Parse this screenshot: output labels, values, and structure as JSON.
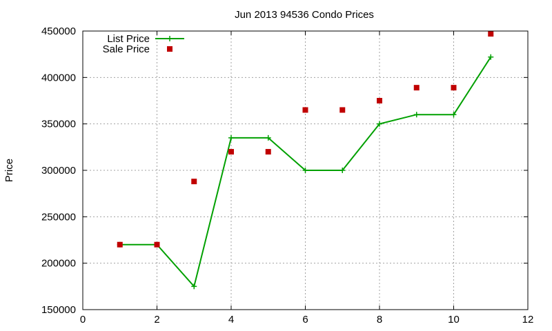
{
  "chart_data": {
    "type": "line",
    "title": "Jun 2013 94536 Condo Prices",
    "xlabel": "",
    "ylabel": "Price",
    "xlim": [
      0,
      12
    ],
    "ylim": [
      150000,
      450000
    ],
    "xticks": [
      0,
      2,
      4,
      6,
      8,
      10,
      12
    ],
    "yticks": [
      150000,
      200000,
      250000,
      300000,
      350000,
      400000,
      450000
    ],
    "grid": true,
    "legend_position": "top-left",
    "series": [
      {
        "name": "List Price",
        "style": "line-points",
        "marker": "plus",
        "color": "#00a000",
        "x": [
          1,
          2,
          3,
          4,
          5,
          6,
          7,
          8,
          9,
          10,
          11
        ],
        "y": [
          220000,
          220000,
          175000,
          335000,
          335000,
          300000,
          300000,
          350000,
          360000,
          360000,
          422000
        ]
      },
      {
        "name": "Sale Price",
        "style": "points",
        "marker": "square",
        "color": "#c00000",
        "x": [
          1,
          2,
          3,
          4,
          5,
          6,
          7,
          8,
          9,
          10,
          11
        ],
        "y": [
          220000,
          220000,
          288000,
          320000,
          320000,
          365000,
          365000,
          375000,
          389000,
          389000,
          447000
        ]
      }
    ]
  }
}
